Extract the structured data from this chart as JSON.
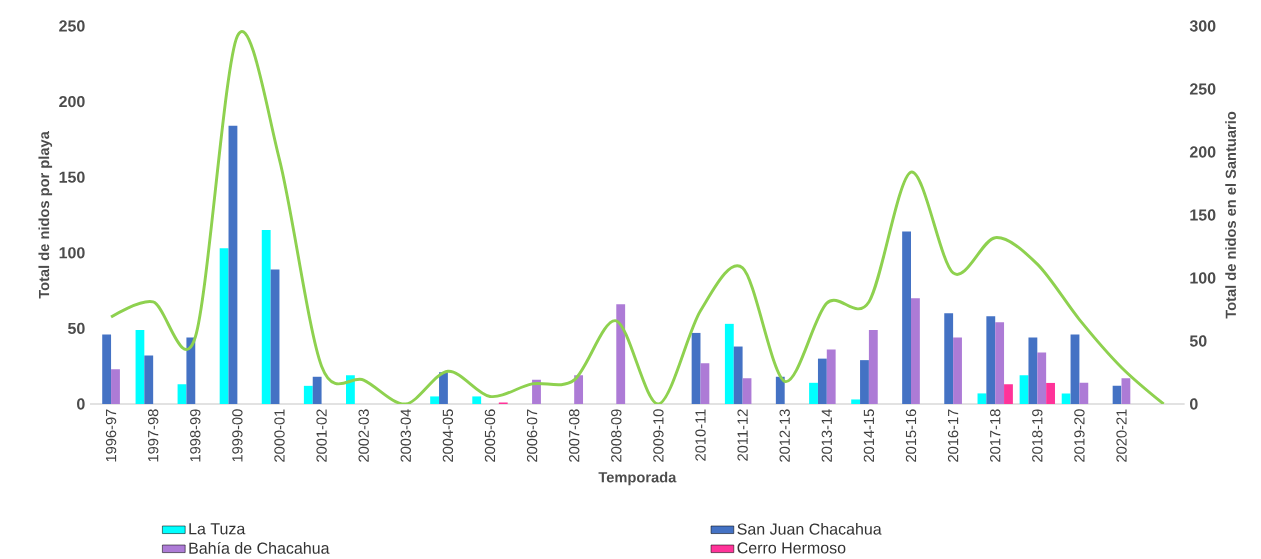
{
  "chart_data": {
    "type": "bar",
    "xlabel": "Temporada",
    "ylabel": "Total de nidos por playa",
    "y2label": "Total de nidos en el Santuario",
    "categories": [
      "1996-97",
      "1997-98",
      "1998-99",
      "1999-00",
      "2000-01",
      "2001-02",
      "2002-03",
      "2003-04",
      "2004-05",
      "2005-06",
      "2006-07",
      "2007-08",
      "2008-09",
      "2009-10",
      "2010-11",
      "2011-12",
      "2012-13",
      "2013-14",
      "2014-15",
      "2015-16",
      "2016-17",
      "2017-18",
      "2018-19",
      "2019-20",
      "2020-21",
      null
    ],
    "series": [
      {
        "name": "La Tuza",
        "color": "#00ffff",
        "values": [
          null,
          49,
          13,
          103,
          115,
          12,
          19,
          null,
          5,
          5,
          null,
          null,
          null,
          null,
          null,
          53,
          null,
          14,
          3,
          null,
          null,
          7,
          19,
          7,
          null,
          null
        ]
      },
      {
        "name": "San Juan Chacahua",
        "color": "#4472c4",
        "values": [
          46,
          32,
          44,
          184,
          89,
          18,
          null,
          null,
          21,
          null,
          null,
          null,
          null,
          null,
          47,
          38,
          18,
          30,
          29,
          114,
          60,
          58,
          44,
          46,
          12,
          null
        ]
      },
      {
        "name": "Bahía de Chacahua",
        "color": "#ad7bd6",
        "values": [
          23,
          null,
          null,
          null,
          null,
          null,
          null,
          null,
          null,
          null,
          16,
          19,
          66,
          null,
          27,
          17,
          null,
          36,
          49,
          70,
          44,
          54,
          34,
          14,
          17,
          null
        ]
      },
      {
        "name": "Cerro Hermoso",
        "color": "#ff3399",
        "values": [
          null,
          null,
          null,
          null,
          null,
          null,
          null,
          null,
          null,
          1,
          null,
          null,
          null,
          null,
          null,
          null,
          null,
          null,
          null,
          null,
          null,
          13,
          14,
          null,
          null,
          null
        ]
      },
      {
        "type": "line",
        "axis": "y2",
        "color": "#8ed14f",
        "values": [
          69,
          81,
          53,
          292,
          194,
          30,
          19,
          0,
          26,
          6,
          16,
          19,
          66,
          0,
          74,
          108,
          18,
          80,
          81,
          184,
          104,
          132,
          111,
          67,
          29,
          0
        ]
      }
    ],
    "ylim": [
      0,
      250
    ],
    "yticks": [
      0,
      50,
      100,
      150,
      200,
      250
    ],
    "y2lim": [
      0,
      300
    ],
    "y2ticks": [
      0,
      50,
      100,
      150,
      200,
      250,
      300
    ],
    "grid": false,
    "legend": "bottom"
  }
}
